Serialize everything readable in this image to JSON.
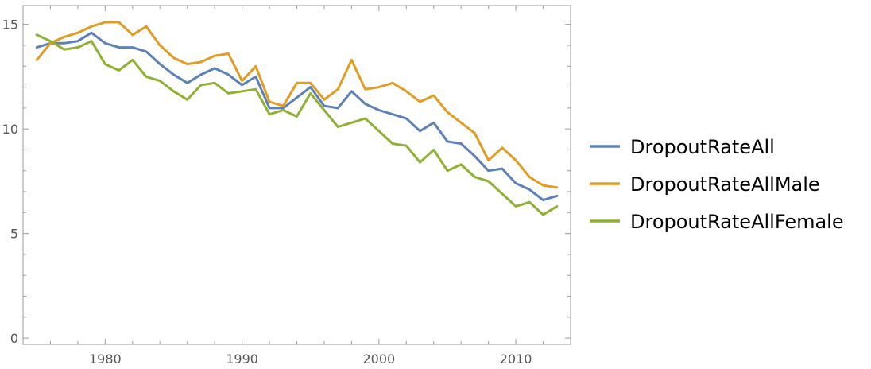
{
  "chart_data": {
    "type": "line",
    "title": "",
    "xlabel": "",
    "ylabel": "",
    "xlim": [
      1974,
      2014
    ],
    "ylim": [
      -0.3,
      15.9
    ],
    "x_ticks": [
      1980,
      1990,
      2000,
      2010
    ],
    "y_ticks": [
      0,
      5,
      10,
      15
    ],
    "grid": false,
    "legend_position": "right",
    "x": [
      1975,
      1976,
      1977,
      1978,
      1979,
      1980,
      1981,
      1982,
      1983,
      1984,
      1985,
      1986,
      1987,
      1988,
      1989,
      1990,
      1991,
      1992,
      1993,
      1994,
      1995,
      1996,
      1997,
      1998,
      1999,
      2000,
      2001,
      2002,
      2003,
      2004,
      2005,
      2006,
      2007,
      2008,
      2009,
      2010,
      2011,
      2012,
      2013
    ],
    "series": [
      {
        "name": "DropoutRateAll",
        "color": "#5e81b5",
        "values": [
          13.9,
          14.1,
          14.1,
          14.2,
          14.6,
          14.1,
          13.9,
          13.9,
          13.7,
          13.1,
          12.6,
          12.2,
          12.6,
          12.9,
          12.6,
          12.1,
          12.5,
          11.0,
          11.0,
          11.5,
          12.0,
          11.1,
          11.0,
          11.8,
          11.2,
          10.9,
          10.7,
          10.5,
          9.9,
          10.3,
          9.4,
          9.3,
          8.7,
          8.0,
          8.1,
          7.4,
          7.1,
          6.6,
          6.8
        ]
      },
      {
        "name": "DropoutRateAllMale",
        "color": "#e19c24",
        "values": [
          13.3,
          14.1,
          14.4,
          14.6,
          14.9,
          15.1,
          15.1,
          14.5,
          14.9,
          14.0,
          13.4,
          13.1,
          13.2,
          13.5,
          13.6,
          12.3,
          13.0,
          11.3,
          11.1,
          12.2,
          12.2,
          11.4,
          11.9,
          13.3,
          11.9,
          12.0,
          12.2,
          11.8,
          11.3,
          11.6,
          10.8,
          10.3,
          9.8,
          8.5,
          9.1,
          8.5,
          7.7,
          7.3,
          7.2
        ]
      },
      {
        "name": "DropoutRateAllFemale",
        "color": "#8fb032",
        "values": [
          14.5,
          14.2,
          13.8,
          13.9,
          14.2,
          13.1,
          12.8,
          13.3,
          12.5,
          12.3,
          11.8,
          11.4,
          12.1,
          12.2,
          11.7,
          11.8,
          11.9,
          10.7,
          10.9,
          10.6,
          11.7,
          10.9,
          10.1,
          10.3,
          10.5,
          9.9,
          9.3,
          9.2,
          8.4,
          9.0,
          8.0,
          8.3,
          7.7,
          7.5,
          6.9,
          6.3,
          6.5,
          5.9,
          6.3
        ]
      }
    ]
  }
}
